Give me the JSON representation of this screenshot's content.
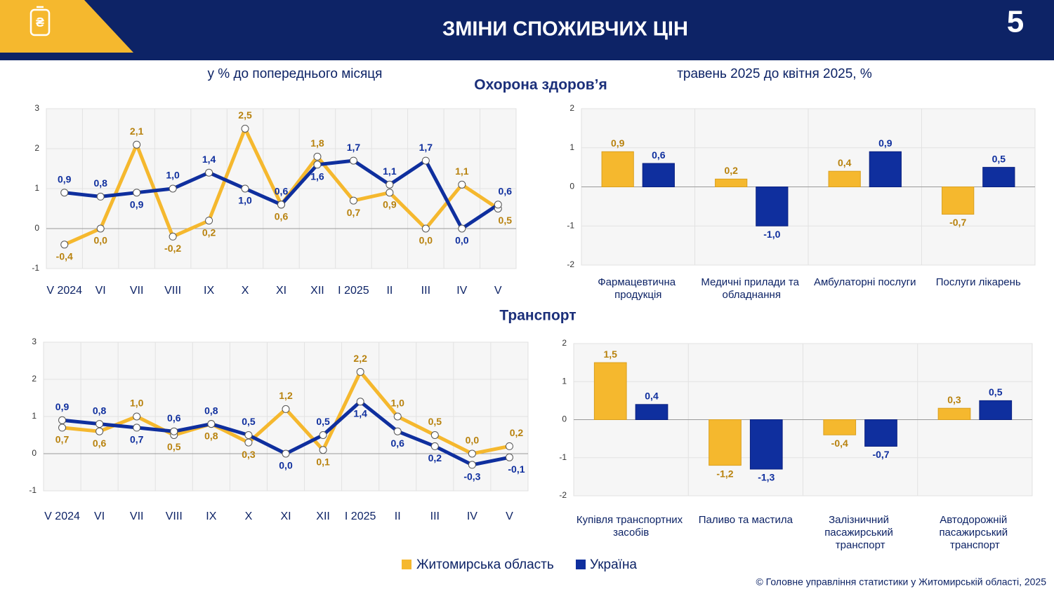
{
  "header": {
    "title": "ЗМІНИ СПОЖИВЧИХ ЦІН",
    "page": "5"
  },
  "subtitle_left": "у % до попереднього місяця",
  "subtitle_right": "травень 2025 до квітня 2025, %",
  "sections": [
    "Охорона здоров’я",
    "Транспорт"
  ],
  "footer": "© Головне управління статистики у Житомирській області, 2025",
  "chart_data": [
    {
      "type": "line",
      "categories": [
        "V 2024",
        "VI",
        "VII",
        "VIII",
        "IX",
        "X",
        "XI",
        "XII",
        "I 2025",
        "II",
        "III",
        "IV",
        "V"
      ],
      "series": [
        {
          "name": "Житомирська область",
          "color": "#f5b82e",
          "values": [
            -0.4,
            0.0,
            2.1,
            -0.2,
            0.2,
            2.5,
            0.6,
            1.8,
            0.7,
            0.9,
            0.0,
            1.1,
            0.5
          ],
          "value_labels": [
            "-0,4",
            "0,0",
            "2,1",
            "-0,2",
            "0,2",
            "2,5",
            "0,6",
            "1,8",
            "0,7",
            "0,9",
            "0,0",
            "1,1",
            "0,5"
          ]
        },
        {
          "name": "Україна",
          "color": "#0f2f9e",
          "values": [
            0.9,
            0.8,
            0.9,
            1.0,
            1.4,
            1.0,
            0.6,
            1.6,
            1.7,
            1.1,
            1.7,
            0.0,
            0.6
          ],
          "value_labels": [
            "0,9",
            "0,8",
            "0,9",
            "1,0",
            "1,4",
            "1,0",
            "0,6",
            "1,6",
            "1,7",
            "1,1",
            "1,7",
            "0,0",
            "0,6"
          ]
        }
      ],
      "ylim": [
        -1,
        3
      ],
      "yticks": [
        -1,
        0,
        1,
        2,
        3
      ],
      "grid": true
    },
    {
      "type": "bar",
      "categories": [
        "Фармацевтична продукція",
        "Медичні прилади та обладнання",
        "Амбулаторні послуги",
        "Послуги лікарень"
      ],
      "series": [
        {
          "name": "Житомирська область",
          "color": "#f5b82e",
          "values": [
            0.9,
            0.2,
            0.4,
            -0.7
          ],
          "value_labels": [
            "0,9",
            "0,2",
            "0,4",
            "-0,7"
          ]
        },
        {
          "name": "Україна",
          "color": "#0f2f9e",
          "values": [
            0.6,
            -1.0,
            0.9,
            0.5
          ],
          "value_labels": [
            "0,6",
            "-1,0",
            "0,9",
            "0,5"
          ]
        }
      ],
      "ylim": [
        -2,
        2
      ],
      "yticks": [
        -2,
        -1,
        0,
        1,
        2
      ],
      "grid": true
    },
    {
      "type": "line",
      "categories": [
        "V 2024",
        "VI",
        "VII",
        "VIII",
        "IX",
        "X",
        "XI",
        "XII",
        "I 2025",
        "II",
        "III",
        "IV",
        "V"
      ],
      "series": [
        {
          "name": "Житомирська область",
          "color": "#f5b82e",
          "values": [
            0.7,
            0.6,
            1.0,
            0.5,
            0.8,
            0.3,
            1.2,
            0.1,
            2.2,
            1.0,
            0.5,
            0.0,
            0.2
          ],
          "value_labels": [
            "0,7",
            "0,6",
            "1,0",
            "0,5",
            "0,8",
            "0,3",
            "1,2",
            "0,1",
            "2,2",
            "1,0",
            "0,5",
            "0,0",
            "0,2"
          ]
        },
        {
          "name": "Україна",
          "color": "#0f2f9e",
          "values": [
            0.9,
            0.8,
            0.7,
            0.6,
            0.8,
            0.5,
            0.0,
            0.5,
            1.4,
            0.6,
            0.2,
            -0.3,
            -0.1
          ],
          "value_labels": [
            "0,9",
            "0,8",
            "0,7",
            "0,6",
            "0,8",
            "0,5",
            "0,0",
            "0,5",
            "1,4",
            "0,6",
            "0,2",
            "-0,3",
            "-0,1"
          ]
        }
      ],
      "ylim": [
        -1,
        3
      ],
      "yticks": [
        -1,
        0,
        1,
        2,
        3
      ],
      "grid": true
    },
    {
      "type": "bar",
      "categories": [
        "Купівля транспортних засобів",
        "Паливо та мастила",
        "Залізничний пасажирський транспорт",
        "Автодорожній пасажирський транспорт"
      ],
      "series": [
        {
          "name": "Житомирська область",
          "color": "#f5b82e",
          "values": [
            1.5,
            -1.2,
            -0.4,
            0.3
          ],
          "value_labels": [
            "1,5",
            "-1,2",
            "-0,4",
            "0,3"
          ]
        },
        {
          "name": "Україна",
          "color": "#0f2f9e",
          "values": [
            0.4,
            -1.3,
            -0.7,
            0.5
          ],
          "value_labels": [
            "0,4",
            "-1,3",
            "-0,7",
            "0,5"
          ]
        }
      ],
      "ylim": [
        -2,
        2
      ],
      "yticks": [
        -2,
        -1,
        0,
        1,
        2
      ],
      "grid": true
    }
  ]
}
